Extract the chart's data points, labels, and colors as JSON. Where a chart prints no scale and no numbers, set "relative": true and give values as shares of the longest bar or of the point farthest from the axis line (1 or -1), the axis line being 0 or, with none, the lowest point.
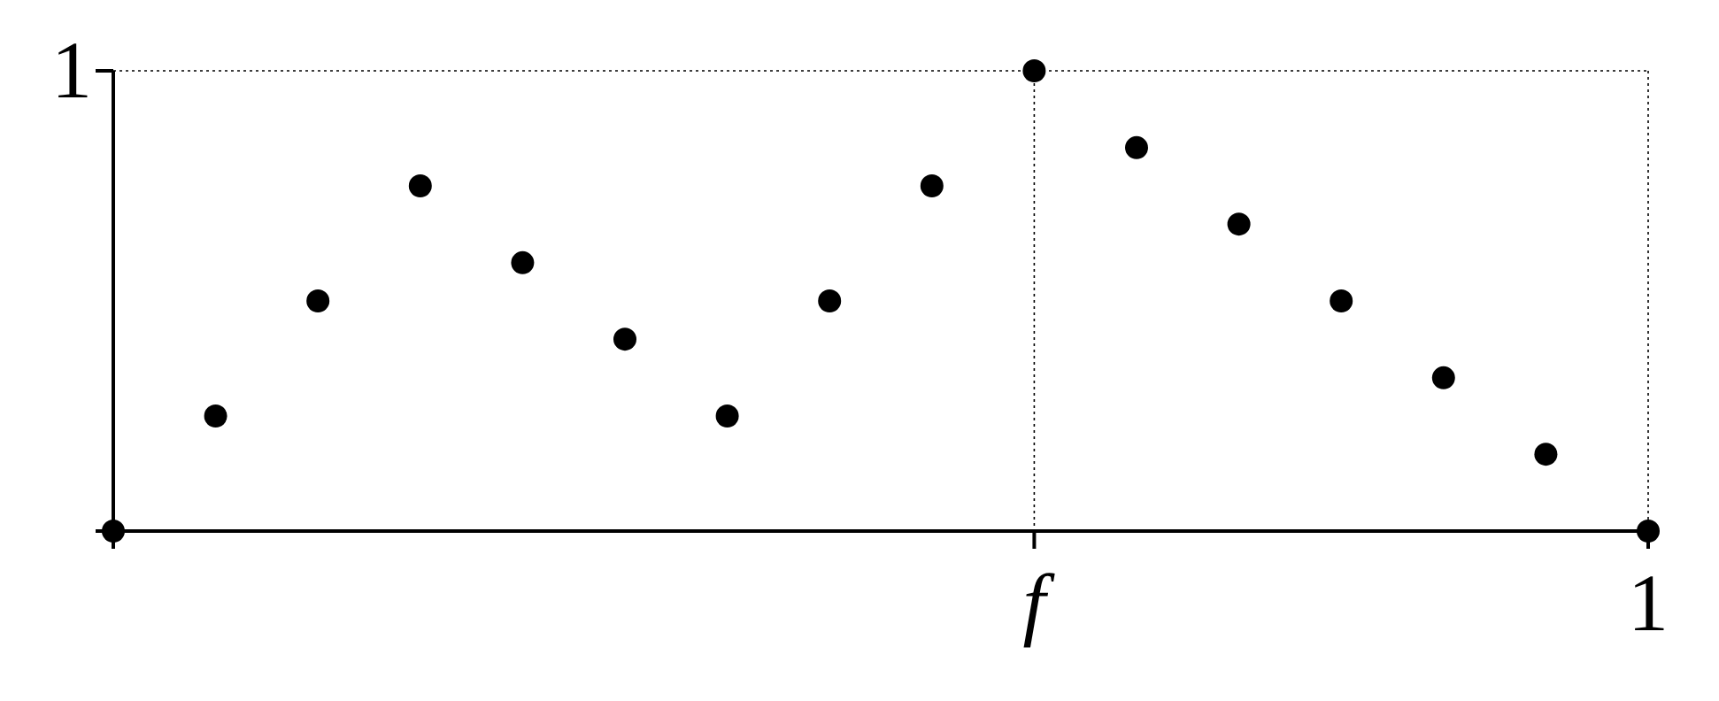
{
  "chart_data": {
    "type": "scatter",
    "relative": true,
    "categories": [
      null,
      null,
      null,
      null,
      null,
      null,
      null,
      null,
      null,
      "f",
      null,
      null,
      null,
      null,
      null,
      "1"
    ],
    "series": [
      {
        "color": "#000000",
        "values": [
          0,
          0.25,
          0.5,
          0.75,
          0.583,
          0.417,
          0.25,
          0.5,
          0.75,
          1,
          0.833,
          0.667,
          0.5,
          0.333,
          0.167,
          0
        ]
      }
    ],
    "annotations": [
      "1"
    ],
    "grid": true,
    "marker": "circle",
    "legend": false
  }
}
